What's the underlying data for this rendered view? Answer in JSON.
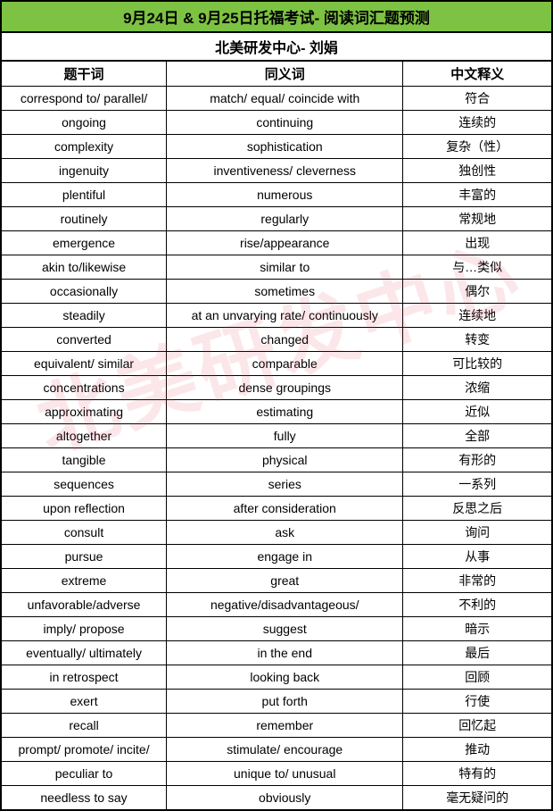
{
  "title": "9月24日 & 9月25日托福考试- 阅读词汇题预测",
  "subtitle": "北美研发中心- 刘娟",
  "watermark": "北美研发中心",
  "columns": [
    "题干词",
    "同义词",
    "中文释义"
  ],
  "rows": [
    [
      "correspond to/ parallel/",
      "match/ equal/ coincide with",
      "符合"
    ],
    [
      "ongoing",
      "continuing",
      "连续的"
    ],
    [
      "complexity",
      "sophistication",
      "复杂（性）"
    ],
    [
      "ingenuity",
      "inventiveness/ cleverness",
      "独创性"
    ],
    [
      "plentiful",
      "numerous",
      "丰富的"
    ],
    [
      "routinely",
      "regularly",
      "常规地"
    ],
    [
      "emergence",
      "rise/appearance",
      "出现"
    ],
    [
      "akin to/likewise",
      "similar to",
      "与…类似"
    ],
    [
      "occasionally",
      "sometimes",
      "偶尔"
    ],
    [
      "steadily",
      "at an unvarying rate/ continuously",
      "连续地"
    ],
    [
      "converted",
      "changed",
      "转变"
    ],
    [
      "equivalent/ similar",
      "comparable",
      "可比较的"
    ],
    [
      "concentrations",
      "dense groupings",
      "浓缩"
    ],
    [
      "approximating",
      "estimating",
      "近似"
    ],
    [
      "altogether",
      "fully",
      "全部"
    ],
    [
      "tangible",
      "physical",
      "有形的"
    ],
    [
      "sequences",
      "series",
      "一系列"
    ],
    [
      "upon reflection",
      "after consideration",
      "反思之后"
    ],
    [
      "consult",
      "ask",
      "询问"
    ],
    [
      "pursue",
      "engage in",
      "从事"
    ],
    [
      "extreme",
      "great",
      "非常的"
    ],
    [
      "unfavorable/adverse",
      "negative/disadvantageous/",
      "不利的"
    ],
    [
      "imply/ propose",
      "suggest",
      "暗示"
    ],
    [
      "eventually/ ultimately",
      "in the end",
      "最后"
    ],
    [
      "in retrospect",
      "looking back",
      "回顾"
    ],
    [
      "exert",
      "put forth",
      "行使"
    ],
    [
      "recall",
      "remember",
      "回忆起"
    ],
    [
      "prompt/ promote/ incite/",
      "stimulate/ encourage",
      "推动"
    ],
    [
      "peculiar to",
      "unique to/ unusual",
      "特有的"
    ],
    [
      "needless to say",
      "obviously",
      "毫无疑问的"
    ]
  ]
}
